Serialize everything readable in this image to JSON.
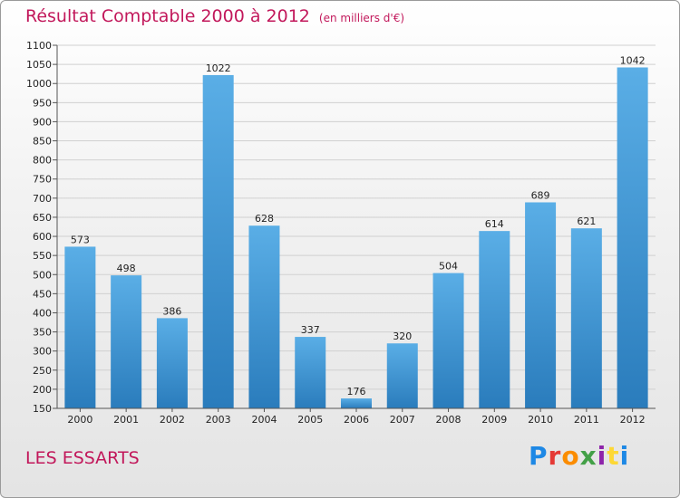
{
  "title": "Résultat Comptable 2000 à 2012",
  "subtitle": "(en milliers d'€)",
  "town": "LES ESSARTS",
  "logo": {
    "letters": [
      "P",
      "r",
      "o",
      "x",
      "i",
      "t",
      "i"
    ],
    "colors": [
      "#1e88e5",
      "#e53935",
      "#fb8c00",
      "#43a047",
      "#8e24aa",
      "#fdd835",
      "#1e88e5"
    ]
  },
  "colors": {
    "title": "#c2185b",
    "bar_top": "#5aaee6",
    "bar_bottom": "#2a7cbc"
  },
  "chart_data": {
    "type": "bar",
    "title": "Résultat Comptable 2000 à 2012",
    "subtitle": "(en milliers d'€)",
    "categories": [
      "2000",
      "2001",
      "2002",
      "2003",
      "2004",
      "2005",
      "2006",
      "2007",
      "2008",
      "2009",
      "2010",
      "2011",
      "2012"
    ],
    "values": [
      573,
      498,
      386,
      1022,
      628,
      337,
      176,
      320,
      504,
      614,
      689,
      621,
      1042
    ],
    "ylim": [
      150,
      1100
    ],
    "yticks": [
      150,
      200,
      250,
      300,
      350,
      400,
      450,
      500,
      550,
      600,
      650,
      700,
      750,
      800,
      850,
      900,
      950,
      1000,
      1050,
      1100
    ],
    "xlabel": "",
    "ylabel": "",
    "grid": true
  }
}
